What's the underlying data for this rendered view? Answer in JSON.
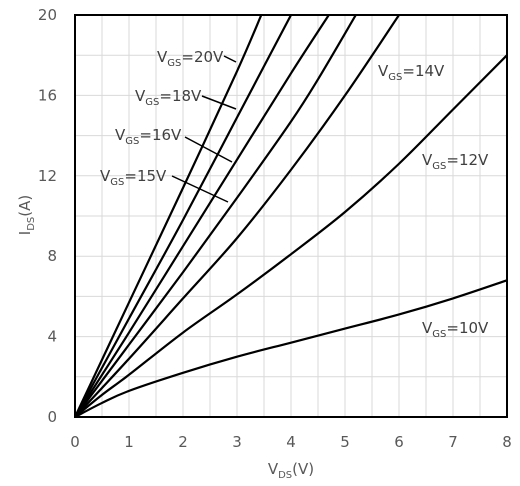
{
  "chart_data": {
    "type": "line",
    "title": "",
    "xlabel": {
      "base": "V",
      "sub": "DS",
      "unit": "(V)"
    },
    "ylabel": {
      "base": "I",
      "sub": "DS",
      "unit": "(A)"
    },
    "xlim": [
      0,
      8
    ],
    "ylim": [
      0,
      20
    ],
    "x_ticks": [
      0,
      1,
      2,
      3,
      4,
      5,
      6,
      7,
      8
    ],
    "y_ticks": [
      0,
      4,
      8,
      12,
      16,
      20
    ],
    "grid": true,
    "series": [
      {
        "name": {
          "base": "V",
          "sub": "GS",
          "rest": "=10V"
        },
        "x": [
          0,
          0.5,
          1,
          2,
          3,
          4,
          5,
          6,
          7,
          8
        ],
        "y": [
          0,
          0.7,
          1.3,
          2.2,
          3.0,
          3.7,
          4.4,
          5.1,
          5.9,
          6.8
        ]
      },
      {
        "name": {
          "base": "V",
          "sub": "GS",
          "rest": "=12V"
        },
        "x": [
          0,
          0.5,
          1,
          2,
          3,
          4,
          5,
          6,
          7,
          8
        ],
        "y": [
          0,
          1.1,
          2.1,
          4.2,
          6.1,
          8.1,
          10.2,
          12.6,
          15.3,
          18.0
        ]
      },
      {
        "name": {
          "base": "V",
          "sub": "GS",
          "rest": "=14V"
        },
        "x": [
          0,
          1,
          2,
          3,
          4,
          5,
          6
        ],
        "y": [
          0,
          2.9,
          5.9,
          8.9,
          12.3,
          16.0,
          20.0
        ]
      },
      {
        "name": {
          "base": "V",
          "sub": "GS",
          "rest": "=15V"
        },
        "x": [
          0,
          1,
          2,
          3,
          4,
          4.5,
          5.2
        ],
        "y": [
          0,
          3.6,
          7.2,
          10.9,
          14.7,
          16.8,
          20.0
        ]
      },
      {
        "name": {
          "base": "V",
          "sub": "GS",
          "rest": "=16V"
        },
        "x": [
          0,
          1,
          2,
          3,
          4,
          4.7
        ],
        "y": [
          0,
          4.2,
          8.5,
          12.8,
          17.1,
          20.0
        ]
      },
      {
        "name": {
          "base": "V",
          "sub": "GS",
          "rest": "=18V"
        },
        "x": [
          0,
          1,
          2,
          3,
          4.0
        ],
        "y": [
          0,
          4.9,
          9.8,
          14.9,
          20.0
        ]
      },
      {
        "name": {
          "base": "V",
          "sub": "GS",
          "rest": "=20V"
        },
        "x": [
          0,
          1,
          2,
          3,
          3.45
        ],
        "y": [
          0,
          5.7,
          11.4,
          17.2,
          20.0
        ]
      }
    ]
  }
}
